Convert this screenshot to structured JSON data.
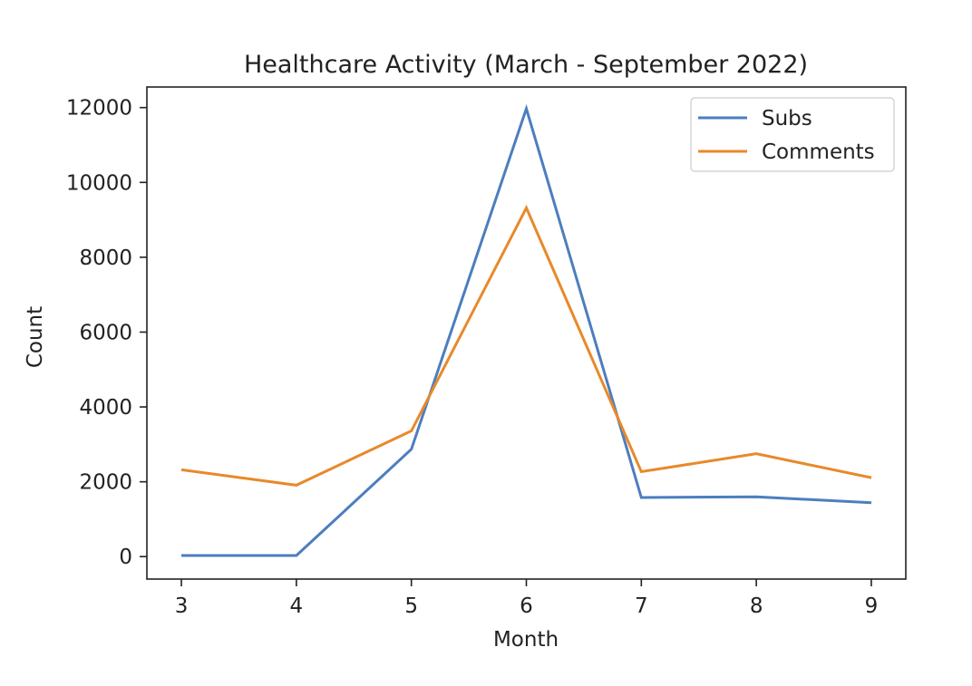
{
  "chart_data": {
    "type": "line",
    "title": "Healthcare Activity (March - September 2022)",
    "xlabel": "Month",
    "ylabel": "Count",
    "x": [
      3,
      4,
      5,
      6,
      7,
      8,
      9
    ],
    "xlim": [
      2.7,
      9.3
    ],
    "ylim": [
      -600,
      12550
    ],
    "xticks": [
      3,
      4,
      5,
      6,
      7,
      8,
      9
    ],
    "yticks": [
      0,
      2000,
      4000,
      6000,
      8000,
      10000,
      12000
    ],
    "grid": false,
    "legend_position": "top-right",
    "series": [
      {
        "name": "Subs",
        "color": "#4c7ebf",
        "values": [
          30,
          30,
          2870,
          11970,
          1580,
          1600,
          1440
        ]
      },
      {
        "name": "Comments",
        "color": "#e8892a",
        "values": [
          2320,
          1910,
          3360,
          9320,
          2270,
          2750,
          2110
        ]
      }
    ]
  }
}
